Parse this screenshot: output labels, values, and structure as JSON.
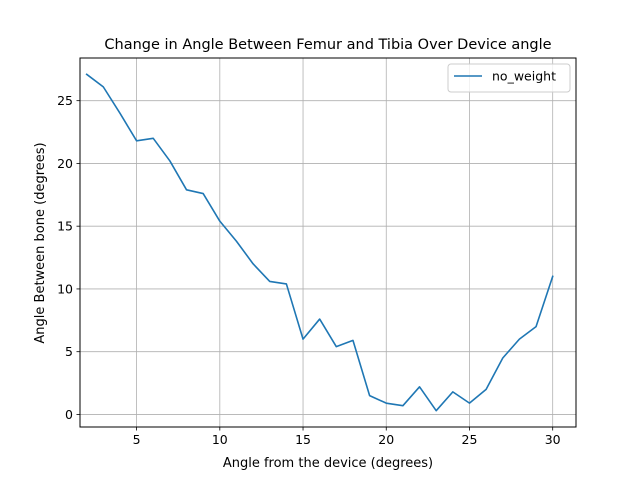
{
  "chart_data": {
    "type": "line",
    "title": "Change in Angle Between Femur and Tibia Over Device angle",
    "xlabel": "Angle from the device (degrees)",
    "ylabel": "Angle Between bone (degrees)",
    "xlim": [
      1.6,
      31.4
    ],
    "ylim": [
      -1.0,
      28.4
    ],
    "xticks": [
      5,
      10,
      15,
      20,
      25,
      30
    ],
    "yticks": [
      0,
      5,
      10,
      15,
      20,
      25
    ],
    "grid": true,
    "legend_position": "top-right",
    "series": [
      {
        "name": "no_weight",
        "color": "#1f77b4",
        "x": [
          2,
          3,
          4,
          5,
          6,
          7,
          8,
          9,
          10,
          11,
          12,
          13,
          14,
          15,
          16,
          17,
          18,
          19,
          20,
          21,
          22,
          23,
          24,
          25,
          26,
          27,
          28,
          29,
          30
        ],
        "y": [
          27.1,
          26.1,
          24.0,
          21.8,
          22.0,
          20.2,
          17.9,
          17.6,
          15.4,
          13.8,
          12.0,
          10.6,
          10.4,
          6.0,
          7.6,
          5.4,
          5.9,
          1.5,
          0.9,
          0.7,
          2.2,
          0.3,
          1.8,
          0.9,
          2.0,
          4.5,
          6.0,
          7.0,
          11.0
        ]
      }
    ]
  }
}
